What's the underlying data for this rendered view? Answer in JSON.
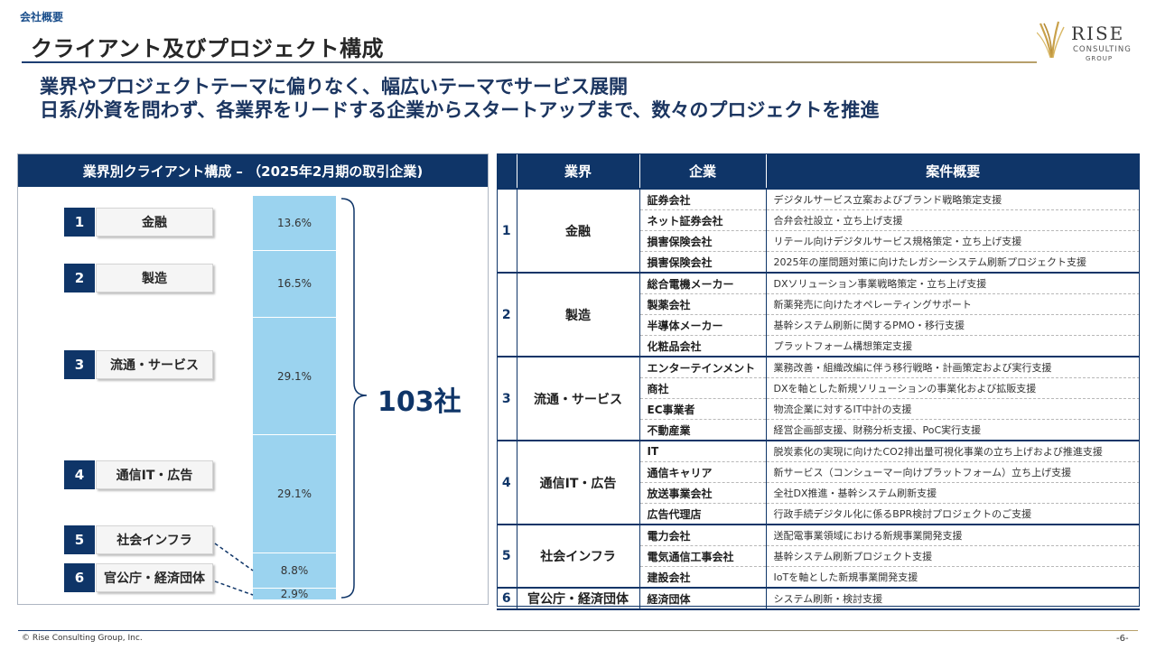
{
  "header": {
    "section_label": "会社概要",
    "title": "クライアント及びプロジェクト構成",
    "logo_text": "RISE",
    "logo_sub_1": "CONSULTING",
    "logo_sub_2": "GROUP"
  },
  "subtitle": {
    "line1": "業界やプロジェクトテーマに偏りなく、幅広いテーマでサービス展開",
    "line2": "日系/外資を問わず、各業界をリードする企業からスタートアップまで、数々のプロジェクトを推進"
  },
  "left_panel": {
    "header": "業界別クライアント構成 – （2025年2月期の取引企業)",
    "total": "103社",
    "industries": [
      {
        "num": "1",
        "label": "金融"
      },
      {
        "num": "2",
        "label": "製造"
      },
      {
        "num": "3",
        "label": "流通・サービス"
      },
      {
        "num": "4",
        "label": "通信IT・広告"
      },
      {
        "num": "5",
        "label": "社会インフラ"
      },
      {
        "num": "6",
        "label": "官公庁・経済団体"
      }
    ]
  },
  "chart_data": {
    "type": "bar",
    "stacked": true,
    "categories": [
      "金融",
      "製造",
      "流通・サービス",
      "通信IT・広告",
      "社会インフラ",
      "官公庁・経済団体"
    ],
    "values": [
      13.6,
      16.5,
      29.1,
      29.1,
      8.8,
      2.9
    ],
    "labels": [
      "13.6%",
      "16.5%",
      "29.1%",
      "29.1%",
      "8.8%",
      "2.9%"
    ],
    "total_label": "103社",
    "color": "#9bd3ef"
  },
  "table": {
    "headers": [
      "業界",
      "企業",
      "案件概要"
    ],
    "groups": [
      {
        "num": "1",
        "industry": "金融",
        "rows": [
          {
            "company": "証券会社",
            "summary": "デジタルサービス立案およびブランド戦略策定支援"
          },
          {
            "company": "ネット証券会社",
            "summary": "合弁会社設立・立ち上げ支援"
          },
          {
            "company": "損害保険会社",
            "summary": "リテール向けデジタルサービス規格策定・立ち上げ支援"
          },
          {
            "company": "損害保険会社",
            "summary": "2025年の崖問題対策に向けたレガシーシステム刷新プロジェクト支援"
          }
        ]
      },
      {
        "num": "2",
        "industry": "製造",
        "rows": [
          {
            "company": "総合電機メーカー",
            "summary": "DXソリューション事業戦略策定・立ち上げ支援"
          },
          {
            "company": "製薬会社",
            "summary": "新薬発売に向けたオペレーティングサポート"
          },
          {
            "company": "半導体メーカー",
            "summary": "基幹システム刷新に関するPMO・移行支援"
          },
          {
            "company": "化粧品会社",
            "summary": "プラットフォーム構想策定支援"
          }
        ]
      },
      {
        "num": "3",
        "industry": "流通・サービス",
        "rows": [
          {
            "company": "エンターテインメント",
            "summary": "業務改善・組織改編に伴う移行戦略・計画策定および実行支援"
          },
          {
            "company": "商社",
            "summary": "DXを軸とした新規ソリューションの事業化および拡販支援"
          },
          {
            "company": "EC事業者",
            "summary": "物流企業に対するIT中計の支援"
          },
          {
            "company": "不動産業",
            "summary": "経営企画部支援、財務分析支援、PoC実行支援"
          }
        ]
      },
      {
        "num": "4",
        "industry": "通信IT・広告",
        "rows": [
          {
            "company": "IT",
            "summary": "脱炭素化の実現に向けたCO2排出量可視化事業の立ち上げおよび推進支援"
          },
          {
            "company": "通信キャリア",
            "summary": "新サービス（コンシューマー向けプラットフォーム）立ち上げ支援"
          },
          {
            "company": "放送事業会社",
            "summary": "全社DX推進・基幹システム刷新支援"
          },
          {
            "company": "広告代理店",
            "summary": "行政手続デジタル化に係るBPR検討プロジェクトのご支援"
          }
        ]
      },
      {
        "num": "5",
        "industry": "社会インフラ",
        "rows": [
          {
            "company": "電力会社",
            "summary": "送配電事業領域における新規事業開発支援"
          },
          {
            "company": "電気通信工事会社",
            "summary": "基幹システム刷新プロジェクト支援"
          },
          {
            "company": "建設会社",
            "summary": "IoTを軸とした新規事業開発支援"
          }
        ]
      },
      {
        "num": "6",
        "industry": "官公庁・経済団体",
        "rows": [
          {
            "company": "経済団体",
            "summary": "システム刷新・検討支援"
          }
        ]
      }
    ]
  },
  "footer": {
    "copyright": "© Rise Consulting Group, Inc.",
    "page": "-6-"
  },
  "colors": {
    "navy": "#0f3568",
    "bar": "#9bd3ef",
    "gold": "#b8a06a"
  }
}
